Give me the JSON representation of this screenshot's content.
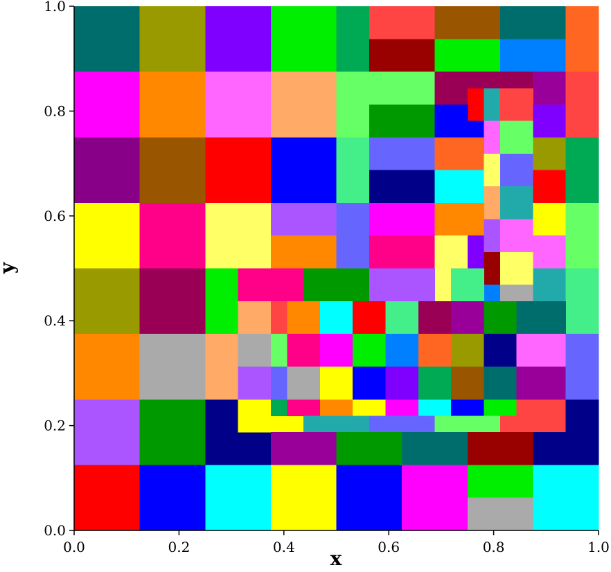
{
  "chart_data": {
    "type": "cells",
    "xlabel": "x",
    "ylabel": "y",
    "xlim": [
      0,
      1
    ],
    "ylim": [
      0,
      1
    ],
    "xticks": [
      {
        "value": 0,
        "label": "0.0"
      },
      {
        "value": 0.2,
        "label": "0.2"
      },
      {
        "value": 0.4,
        "label": "0.4"
      },
      {
        "value": 0.6,
        "label": "0.6"
      },
      {
        "value": 0.8,
        "label": "0.8"
      },
      {
        "value": 1,
        "label": "1.0"
      }
    ],
    "yticks": [
      {
        "value": 0,
        "label": "0.0"
      },
      {
        "value": 0.2,
        "label": "0.2"
      },
      {
        "value": 0.4,
        "label": "0.4"
      },
      {
        "value": 0.6,
        "label": "0.6"
      },
      {
        "value": 0.8,
        "label": "0.8"
      },
      {
        "value": 1,
        "label": "1.0"
      }
    ],
    "cells": [
      [
        0,
        0.875,
        0.125,
        1,
        "#006d6d"
      ],
      [
        0.125,
        0.875,
        0.25,
        1,
        "#999900"
      ],
      [
        0.25,
        0.875,
        0.375,
        1,
        "#8000ff"
      ],
      [
        0.375,
        0.875,
        0.5,
        1,
        "#00ee00"
      ],
      [
        0.5,
        0.875,
        0.5625,
        1,
        "#00aa55"
      ],
      [
        0.5625,
        0.9375,
        0.6875,
        1,
        "#ff4444"
      ],
      [
        0.5625,
        0.875,
        0.6875,
        0.9375,
        "#990000"
      ],
      [
        0.6875,
        0.9375,
        0.8125,
        1,
        "#995500"
      ],
      [
        0.6875,
        0.875,
        0.8125,
        0.9375,
        "#00ee00"
      ],
      [
        0.8125,
        0.9375,
        0.9375,
        1,
        "#006d6d"
      ],
      [
        0.8125,
        0.875,
        0.9375,
        0.9375,
        "#0080ff"
      ],
      [
        0.9375,
        0.875,
        1,
        1,
        "#ff6622"
      ],
      [
        0,
        0.75,
        0.125,
        0.875,
        "#ff00ff"
      ],
      [
        0.125,
        0.75,
        0.25,
        0.875,
        "#ff8800"
      ],
      [
        0.25,
        0.75,
        0.375,
        0.875,
        "#ff66ff"
      ],
      [
        0.375,
        0.75,
        0.5,
        0.875,
        "#ffaa66"
      ],
      [
        0.5,
        0.75,
        0.5625,
        0.875,
        "#66ff66"
      ],
      [
        0.5625,
        0.8125,
        0.6875,
        0.875,
        "#66ff66"
      ],
      [
        0.5625,
        0.75,
        0.6875,
        0.8125,
        "#009900"
      ],
      [
        0.6875,
        0.84375,
        0.875,
        0.875,
        "#990055"
      ],
      [
        0.6875,
        0.8125,
        0.75,
        0.84375,
        "#990055"
      ],
      [
        0.75,
        0.78125,
        0.78125,
        0.84375,
        "#ff0000"
      ],
      [
        0.78125,
        0.78125,
        0.8125,
        0.84375,
        "#22aaaa"
      ],
      [
        0.6875,
        0.75,
        0.75,
        0.8125,
        "#0000ff"
      ],
      [
        0.75,
        0.75,
        0.78125,
        0.78125,
        "#0000ff"
      ],
      [
        0.78125,
        0.71875,
        0.8125,
        0.78125,
        "#ff66ff"
      ],
      [
        0.875,
        0.8125,
        0.9375,
        0.875,
        "#990099"
      ],
      [
        0.8125,
        0.78125,
        0.875,
        0.84375,
        "#ff4444"
      ],
      [
        0.8125,
        0.71875,
        0.875,
        0.78125,
        "#66ff66"
      ],
      [
        0.875,
        0.75,
        0.9375,
        0.8125,
        "#8000ff"
      ],
      [
        0.9375,
        0.75,
        1,
        0.875,
        "#ff4444"
      ],
      [
        0,
        0.625,
        0.125,
        0.75,
        "#880088"
      ],
      [
        0.125,
        0.625,
        0.25,
        0.75,
        "#995500"
      ],
      [
        0.25,
        0.625,
        0.375,
        0.75,
        "#ff0000"
      ],
      [
        0.375,
        0.625,
        0.5,
        0.75,
        "#0000ff"
      ],
      [
        0.5,
        0.625,
        0.5625,
        0.75,
        "#44ee88"
      ],
      [
        0.5625,
        0.6875,
        0.6875,
        0.75,
        "#6666ff"
      ],
      [
        0.5625,
        0.625,
        0.6875,
        0.6875,
        "#000088"
      ],
      [
        0.6875,
        0.6875,
        0.78125,
        0.75,
        "#ff6622"
      ],
      [
        0.6875,
        0.625,
        0.78125,
        0.6875,
        "#00ffff"
      ],
      [
        0.78125,
        0.65625,
        0.8125,
        0.71875,
        "#ffff66"
      ],
      [
        0.78125,
        0.59375,
        0.8125,
        0.65625,
        "#ffaa66"
      ],
      [
        0.8125,
        0.65625,
        0.875,
        0.71875,
        "#6666ff"
      ],
      [
        0.8125,
        0.59375,
        0.875,
        0.65625,
        "#22aaaa"
      ],
      [
        0.875,
        0.6875,
        0.9375,
        0.75,
        "#999900"
      ],
      [
        0.875,
        0.625,
        0.9375,
        0.6875,
        "#ff0000"
      ],
      [
        0.9375,
        0.625,
        1,
        0.75,
        "#00aa55"
      ],
      [
        0,
        0.5,
        0.125,
        0.625,
        "#ffff00"
      ],
      [
        0.125,
        0.5,
        0.25,
        0.625,
        "#ff0088"
      ],
      [
        0.25,
        0.5,
        0.375,
        0.625,
        "#ffff66"
      ],
      [
        0.375,
        0.5625,
        0.5,
        0.625,
        "#aa55ff"
      ],
      [
        0.375,
        0.5,
        0.5,
        0.5625,
        "#ff8800"
      ],
      [
        0.5,
        0.5,
        0.5625,
        0.625,
        "#6666ff"
      ],
      [
        0.5625,
        0.5625,
        0.6875,
        0.625,
        "#ff00ff"
      ],
      [
        0.5625,
        0.5,
        0.6875,
        0.5625,
        "#ff0088"
      ],
      [
        0.6875,
        0.5625,
        0.78125,
        0.625,
        "#ff8800"
      ],
      [
        0.6875,
        0.4375,
        0.71875,
        0.5625,
        "#ffff66"
      ],
      [
        0.71875,
        0.5,
        0.75,
        0.5625,
        "#ffff66"
      ],
      [
        0.75,
        0.5,
        0.78125,
        0.5625,
        "#8000ff"
      ],
      [
        0.78125,
        0.53125,
        0.8125,
        0.59375,
        "#aa55ff"
      ],
      [
        0.78125,
        0.46875,
        0.8125,
        0.53125,
        "#990000"
      ],
      [
        0.78125,
        0.4375,
        0.8125,
        0.46875,
        "#0080ff"
      ],
      [
        0.8125,
        0.53125,
        0.875,
        0.59375,
        "#ff66ff"
      ],
      [
        0.8125,
        0.46875,
        0.875,
        0.53125,
        "#ffff66"
      ],
      [
        0.8125,
        0.4375,
        0.875,
        0.46875,
        "#aaaaaa"
      ],
      [
        0.875,
        0.5625,
        0.9375,
        0.625,
        "#ffff00"
      ],
      [
        0.875,
        0.5,
        0.9375,
        0.5625,
        "#ff66ff"
      ],
      [
        0.875,
        0.4375,
        0.9375,
        0.5,
        "#22aaaa"
      ],
      [
        0.9375,
        0.5,
        1,
        0.625,
        "#66ff66"
      ],
      [
        0.71875,
        0.4375,
        0.78125,
        0.5,
        "#44ee88"
      ],
      [
        0,
        0.375,
        0.125,
        0.5,
        "#999900"
      ],
      [
        0.125,
        0.375,
        0.25,
        0.5,
        "#990055"
      ],
      [
        0.25,
        0.375,
        0.3125,
        0.5,
        "#00ee00"
      ],
      [
        0.3125,
        0.4375,
        0.4375,
        0.5,
        "#ff0088"
      ],
      [
        0.4375,
        0.4375,
        0.5625,
        0.5,
        "#009900"
      ],
      [
        0.5625,
        0.4375,
        0.6875,
        0.5,
        "#aa55ff"
      ],
      [
        0.9375,
        0.375,
        1,
        0.5,
        "#44ee88"
      ],
      [
        0.3125,
        0.375,
        0.375,
        0.4375,
        "#ffaa66"
      ],
      [
        0.375,
        0.375,
        0.40625,
        0.4375,
        "#ff4444"
      ],
      [
        0.40625,
        0.375,
        0.46875,
        0.4375,
        "#ff8800"
      ],
      [
        0.46875,
        0.375,
        0.53125,
        0.4375,
        "#00ffff"
      ],
      [
        0.53125,
        0.375,
        0.59375,
        0.4375,
        "#ff0000"
      ],
      [
        0.59375,
        0.375,
        0.65625,
        0.4375,
        "#44ee88"
      ],
      [
        0.65625,
        0.375,
        0.71875,
        0.4375,
        "#990055"
      ],
      [
        0.71875,
        0.375,
        0.78125,
        0.4375,
        "#990099"
      ],
      [
        0.78125,
        0.375,
        0.84375,
        0.4375,
        "#009900"
      ],
      [
        0.84375,
        0.375,
        0.9375,
        0.4375,
        "#006d6d"
      ],
      [
        0,
        0.25,
        0.125,
        0.375,
        "#ff8800"
      ],
      [
        0.125,
        0.25,
        0.25,
        0.375,
        "#aaaaaa"
      ],
      [
        0.25,
        0.25,
        0.3125,
        0.375,
        "#ffaa66"
      ],
      [
        0.3125,
        0.3125,
        0.375,
        0.375,
        "#aaaaaa"
      ],
      [
        0.3125,
        0.25,
        0.375,
        0.3125,
        "#aa55ff"
      ],
      [
        0.375,
        0.3125,
        0.40625,
        0.375,
        "#66ff66"
      ],
      [
        0.375,
        0.25,
        0.40625,
        0.3125,
        "#6666ff"
      ],
      [
        0.40625,
        0.3125,
        0.46875,
        0.375,
        "#ff0088"
      ],
      [
        0.40625,
        0.25,
        0.46875,
        0.3125,
        "#aaaaaa"
      ],
      [
        0.46875,
        0.3125,
        0.53125,
        0.375,
        "#ff00ff"
      ],
      [
        0.46875,
        0.25,
        0.53125,
        0.3125,
        "#ffff00"
      ],
      [
        0.53125,
        0.3125,
        0.59375,
        0.375,
        "#00ee00"
      ],
      [
        0.53125,
        0.25,
        0.59375,
        0.3125,
        "#0000ff"
      ],
      [
        0.59375,
        0.3125,
        0.65625,
        0.375,
        "#0080ff"
      ],
      [
        0.59375,
        0.25,
        0.65625,
        0.3125,
        "#8000ff"
      ],
      [
        0.65625,
        0.3125,
        0.71875,
        0.375,
        "#ff6622"
      ],
      [
        0.65625,
        0.25,
        0.71875,
        0.3125,
        "#00aa55"
      ],
      [
        0.71875,
        0.3125,
        0.78125,
        0.375,
        "#999900"
      ],
      [
        0.71875,
        0.25,
        0.78125,
        0.3125,
        "#995500"
      ],
      [
        0.78125,
        0.3125,
        0.84375,
        0.375,
        "#000088"
      ],
      [
        0.78125,
        0.25,
        0.84375,
        0.3125,
        "#006d6d"
      ],
      [
        0.84375,
        0.3125,
        0.9375,
        0.375,
        "#ff66ff"
      ],
      [
        0.84375,
        0.25,
        0.9375,
        0.3125,
        "#990099"
      ],
      [
        0.9375,
        0.25,
        1,
        0.375,
        "#6666ff"
      ],
      [
        0,
        0.125,
        0.125,
        0.25,
        "#aa55ff"
      ],
      [
        0.125,
        0.125,
        0.25,
        0.25,
        "#009900"
      ],
      [
        0.25,
        0.125,
        0.3125,
        0.25,
        "#000088"
      ],
      [
        0.3125,
        0.125,
        0.375,
        0.1875,
        "#000088"
      ],
      [
        0.3125,
        0.21875,
        0.375,
        0.25,
        "#ffff00"
      ],
      [
        0.3125,
        0.1875,
        0.4375,
        0.21875,
        "#ffff00"
      ],
      [
        0.375,
        0.21875,
        0.40625,
        0.25,
        "#00aa55"
      ],
      [
        0.40625,
        0.21875,
        0.46875,
        0.25,
        "#ff0088"
      ],
      [
        0.46875,
        0.21875,
        0.53125,
        0.25,
        "#ff8800"
      ],
      [
        0.53125,
        0.21875,
        0.59375,
        0.25,
        "#ffff00"
      ],
      [
        0.59375,
        0.21875,
        0.65625,
        0.25,
        "#ff00ff"
      ],
      [
        0.65625,
        0.21875,
        0.71875,
        0.25,
        "#00ffff"
      ],
      [
        0.71875,
        0.21875,
        0.78125,
        0.25,
        "#0000ff"
      ],
      [
        0.78125,
        0.21875,
        0.84375,
        0.25,
        "#00ee00"
      ],
      [
        0.4375,
        0.1875,
        0.5625,
        0.21875,
        "#22aaaa"
      ],
      [
        0.5625,
        0.1875,
        0.6875,
        0.21875,
        "#6666ff"
      ],
      [
        0.6875,
        0.1875,
        0.8125,
        0.21875,
        "#66ff66"
      ],
      [
        0.8125,
        0.1875,
        0.9375,
        0.21875,
        "#ff4444"
      ],
      [
        0.84375,
        0.21875,
        0.9375,
        0.25,
        "#ff4444"
      ],
      [
        0.9375,
        0.1875,
        1,
        0.25,
        "#000088"
      ],
      [
        0.875,
        0.125,
        1,
        0.1875,
        "#000088"
      ],
      [
        0.375,
        0.125,
        0.5,
        0.1875,
        "#990099"
      ],
      [
        0.5,
        0.125,
        0.625,
        0.1875,
        "#009900"
      ],
      [
        0.625,
        0.125,
        0.75,
        0.1875,
        "#006d6d"
      ],
      [
        0.75,
        0.125,
        0.875,
        0.1875,
        "#990000"
      ],
      [
        0,
        0,
        0.125,
        0.125,
        "#ff0000"
      ],
      [
        0.125,
        0,
        0.25,
        0.125,
        "#0000ff"
      ],
      [
        0.25,
        0,
        0.375,
        0.125,
        "#00ffff"
      ],
      [
        0.375,
        0,
        0.5,
        0.125,
        "#ffff00"
      ],
      [
        0.5,
        0,
        0.625,
        0.125,
        "#0000ff"
      ],
      [
        0.625,
        0,
        0.75,
        0.125,
        "#ff00ff"
      ],
      [
        0.75,
        0.0625,
        0.875,
        0.125,
        "#00ee00"
      ],
      [
        0.75,
        0,
        0.875,
        0.0625,
        "#aaaaaa"
      ],
      [
        0.875,
        0,
        1,
        0.125,
        "#00ffff"
      ]
    ]
  }
}
